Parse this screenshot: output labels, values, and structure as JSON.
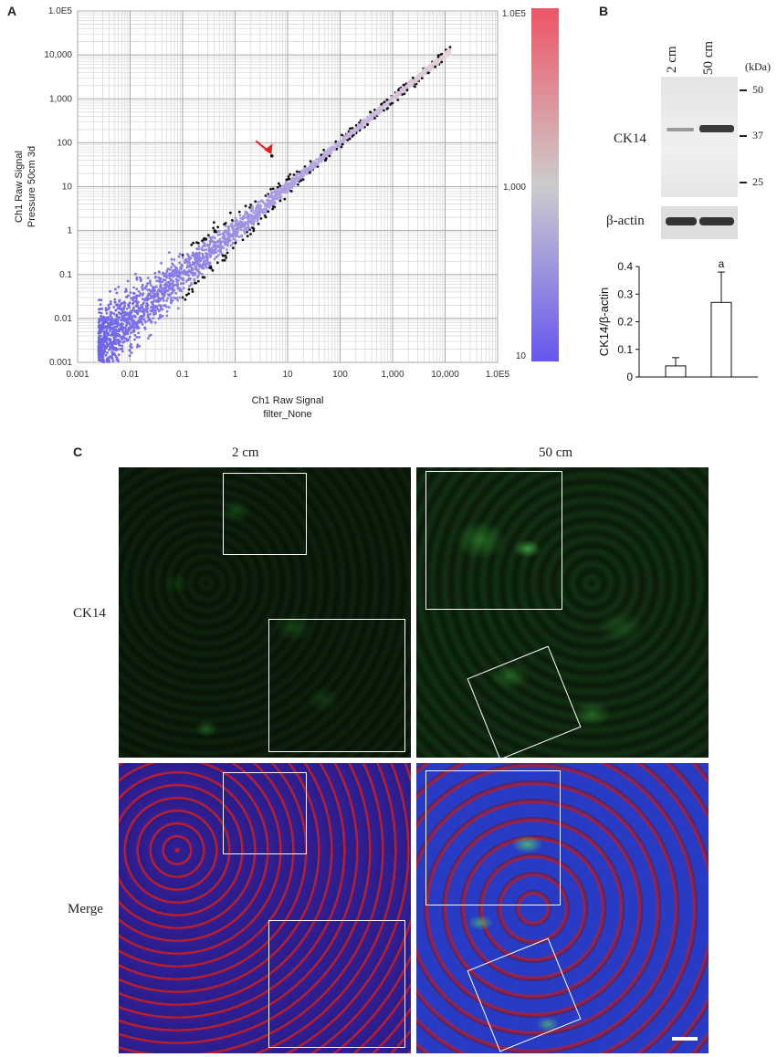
{
  "panels": {
    "a_letter": "A",
    "b_letter": "B",
    "c_letter": "C"
  },
  "chart_data": [
    {
      "type": "scatter",
      "scale": "log-log",
      "xlabel": "Ch1 Raw Signal",
      "xlabel2": "filter_None",
      "ylabel": "Ch1 Raw Signal",
      "ylabel2": "Pressure 50cm 3d",
      "xlim": [
        0.001,
        100000
      ],
      "ylim": [
        0.001,
        100000
      ],
      "x_ticks": [
        "0.001",
        "0.01",
        "0.1",
        "1",
        "10",
        "100",
        "1,000",
        "10,000",
        "1.0E5"
      ],
      "y_ticks": [
        "0.001",
        "0.01",
        "0.1",
        "1",
        "10",
        "100",
        "1,000",
        "10,000",
        "1.0E5"
      ],
      "colorbar_ticks": [
        "1.0E5",
        "1,000",
        "10"
      ],
      "colorbar_colors": [
        "#ee5566",
        "#cccccc",
        "#6655ee"
      ],
      "grid": true,
      "annotation": "red arrow pointing to an outlier point near (5, 50)",
      "point_colors": {
        "main": "#7766ee",
        "outlier": "#111111"
      }
    },
    {
      "type": "bar",
      "categories": [
        "2 cm",
        "50 cm"
      ],
      "values": [
        0.04,
        0.27
      ],
      "errors": [
        0.03,
        0.11
      ],
      "ylabel": "CK14/β-actin",
      "ylim": [
        0,
        0.4
      ],
      "y_ticks": [
        "0",
        "0.1",
        "0.2",
        "0.3",
        "0.4"
      ],
      "annotations": [
        "",
        "a"
      ]
    }
  ],
  "blot": {
    "lanes": [
      "2 cm",
      "50 cm"
    ],
    "unit": "(kDa)",
    "markers": [
      "50",
      "37",
      "25"
    ],
    "rows": [
      "CK14",
      "β-actin"
    ]
  },
  "micro": {
    "col_labels": [
      "2 cm",
      "50 cm"
    ],
    "row_labels": [
      "CK14",
      "Merge"
    ]
  }
}
